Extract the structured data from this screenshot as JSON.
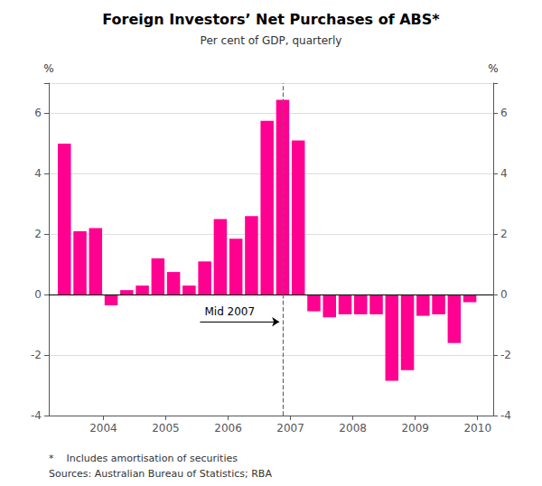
{
  "chart_data": {
    "type": "bar",
    "title": "Foreign Investors’ Net Purchases of ABS*",
    "subtitle": "Per cent of GDP, quarterly",
    "ylabel": "%",
    "y2label": "%",
    "footnotes": [
      "*    Includes amortisation of securities",
      "Sources: Australian Bureau of Statistics; RBA"
    ],
    "color": "#FF0090",
    "x": [
      2003.375,
      2003.625,
      2003.875,
      2004.125,
      2004.375,
      2004.625,
      2004.875,
      2005.125,
      2005.375,
      2005.625,
      2005.875,
      2006.125,
      2006.375,
      2006.625,
      2006.875,
      2007.125,
      2007.375,
      2007.625,
      2007.875,
      2008.125,
      2008.375,
      2008.625,
      2008.875,
      2009.125,
      2009.375,
      2009.625,
      2009.875
    ],
    "values": [
      5.0,
      2.1,
      2.2,
      -0.35,
      0.15,
      0.3,
      1.2,
      0.75,
      0.3,
      1.1,
      2.5,
      1.85,
      2.6,
      5.75,
      6.45,
      5.1,
      -0.55,
      -0.75,
      -0.65,
      -0.65,
      -0.65,
      -2.85,
      -2.5,
      -0.7,
      -0.65,
      -1.6,
      -0.25
    ],
    "xlim": [
      2003.125,
      2010.25
    ],
    "xticks": [
      2004,
      2005,
      2006,
      2007,
      2008,
      2009,
      2010
    ],
    "ylim": [
      -4,
      7
    ],
    "yticks": [
      -4,
      -2,
      0,
      2,
      4,
      6
    ],
    "y2lim": [
      -4,
      7
    ],
    "y2ticks": [
      -4,
      -2,
      0,
      2,
      4,
      6
    ],
    "grid": true,
    "hlines": [
      0
    ],
    "vlines": [
      2006.875
    ],
    "annotation": {
      "text": "Mid 2007",
      "x": 2005.55,
      "y": -0.9,
      "arrow_x": 2006.82,
      "arrow_y": -0.9
    }
  }
}
